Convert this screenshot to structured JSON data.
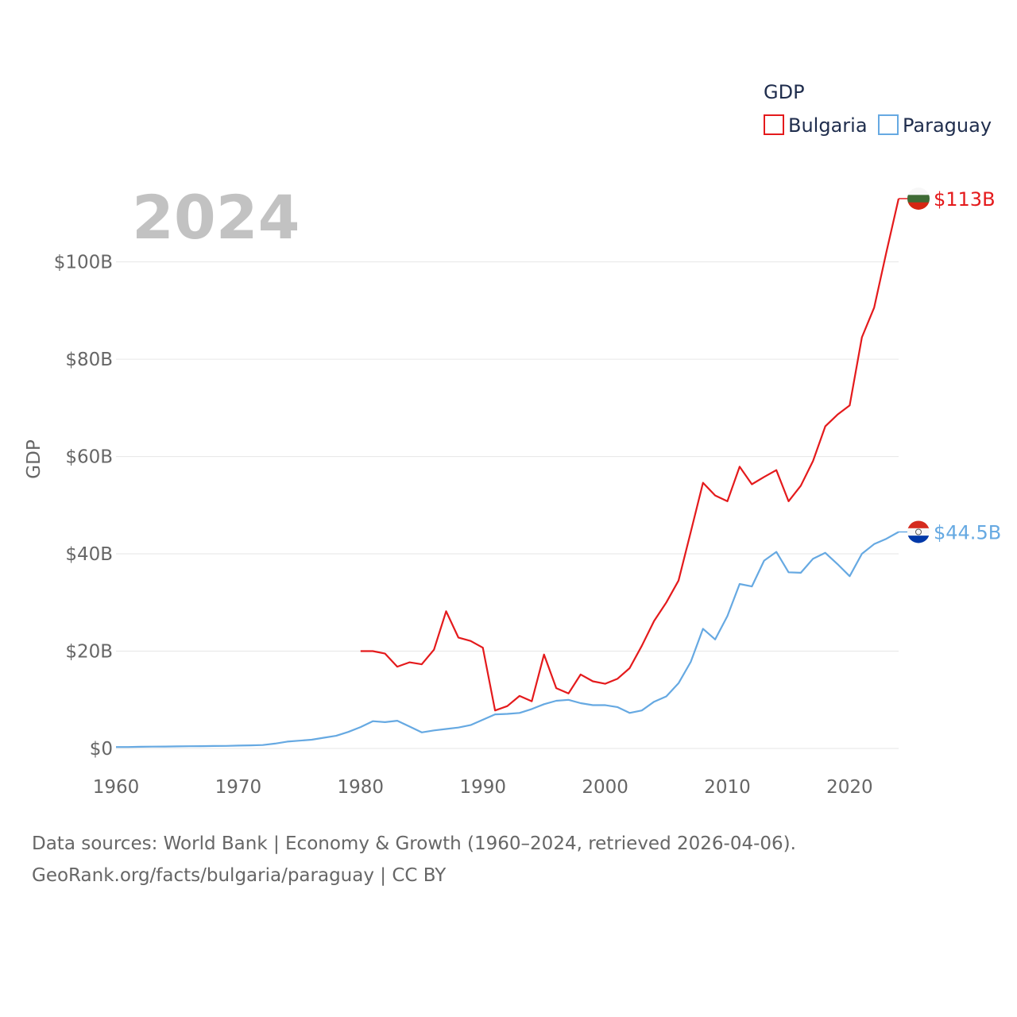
{
  "chart_data": {
    "type": "line",
    "title": "GDP",
    "xlabel": "",
    "ylabel": "GDP",
    "year_label": "2024",
    "xlim": [
      1960,
      2024
    ],
    "ylim": [
      0,
      113
    ],
    "x_ticks": [
      1960,
      1970,
      1980,
      1990,
      2000,
      2010,
      2020
    ],
    "x_tick_labels": [
      "1960",
      "1970",
      "1980",
      "1990",
      "2000",
      "2010",
      "2020"
    ],
    "y_ticks": [
      0,
      20,
      40,
      60,
      80,
      100
    ],
    "y_tick_labels": [
      "$0",
      "$20B",
      "$40B",
      "$60B",
      "$80B",
      "$100B"
    ],
    "legend": {
      "title": "GDP",
      "position": "top-right"
    },
    "series": [
      {
        "name": "Bulgaria",
        "color": "#e41a1c",
        "end_label": "$113B",
        "flag": "bulgaria-flag-icon",
        "start_year": 1980,
        "values": [
          20.0,
          20.0,
          19.5,
          16.8,
          17.7,
          17.3,
          20.3,
          28.2,
          22.8,
          22.1,
          20.7,
          7.8,
          8.7,
          10.8,
          9.7,
          19.3,
          12.4,
          11.3,
          15.2,
          13.8,
          13.3,
          14.3,
          16.5,
          21.1,
          26.2,
          30.0,
          34.5,
          44.5,
          54.6,
          52.0,
          50.8,
          57.9,
          54.3,
          55.8,
          57.2,
          50.8,
          54.0,
          59.1,
          66.2,
          68.6,
          70.5,
          84.5,
          90.6,
          102.0,
          113.0
        ]
      },
      {
        "name": "Paraguay",
        "color": "#66a9e2",
        "end_label": "$44.5B",
        "flag": "paraguay-flag-icon",
        "start_year": 1960,
        "values": [
          0.3,
          0.3,
          0.35,
          0.38,
          0.4,
          0.43,
          0.46,
          0.48,
          0.5,
          0.53,
          0.58,
          0.63,
          0.71,
          0.99,
          1.4,
          1.6,
          1.8,
          2.2,
          2.6,
          3.4,
          4.4,
          5.6,
          5.4,
          5.7,
          4.5,
          3.3,
          3.7,
          4.0,
          4.3,
          4.8,
          5.9,
          7.0,
          7.1,
          7.3,
          8.1,
          9.1,
          9.8,
          10.0,
          9.3,
          8.9,
          8.9,
          8.5,
          7.3,
          7.8,
          9.6,
          10.7,
          13.4,
          17.8,
          24.6,
          22.4,
          27.2,
          33.8,
          33.3,
          38.6,
          40.4,
          36.2,
          36.1,
          39.0,
          40.2,
          37.9,
          35.4,
          40.0,
          42.0,
          43.1,
          44.5
        ]
      }
    ]
  },
  "source": {
    "line1": "Data sources: World Bank | Economy & Growth (1960–2024, retrieved 2026-04-06).",
    "line2": "GeoRank.org/facts/bulgaria/paraguay | CC BY"
  }
}
